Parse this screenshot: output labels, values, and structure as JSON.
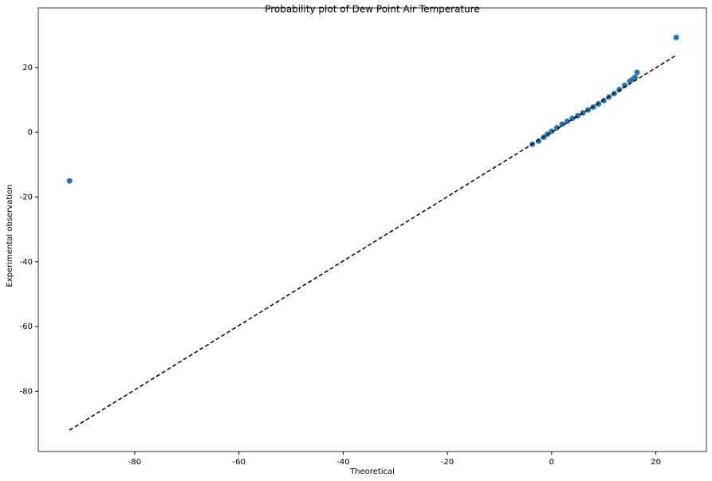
{
  "chart_data": {
    "type": "scatter",
    "title": "Probability plot of Dew Point Air Temperature",
    "x_label": "Theoretical",
    "y_label": "Experimental observation",
    "xlim": [
      -98.5,
      29.7
    ],
    "ylim": [
      -98.6,
      38.4
    ],
    "xticks": [
      -80,
      -60,
      -40,
      -20,
      0,
      20
    ],
    "yticks": [
      -80,
      -60,
      -40,
      -20,
      0,
      20
    ],
    "series": [
      {
        "type": "scatter",
        "color": "#1f77b4",
        "x": [
          -92.5,
          -3.7,
          -2.5,
          -1.5,
          -0.8,
          0,
          1,
          2,
          3,
          4,
          5,
          6,
          7,
          8,
          9,
          10,
          11,
          12,
          13,
          14,
          15,
          15.6,
          16,
          16.4,
          23.9
        ],
        "values": [
          -15,
          -3.7,
          -2.7,
          -1.5,
          -0.6,
          0.3,
          1.4,
          2.5,
          3.4,
          4.3,
          5.1,
          6,
          6.9,
          7.8,
          8.8,
          9.8,
          10.9,
          12,
          13.2,
          14.5,
          15.8,
          16.4,
          17,
          18.5,
          29.3
        ]
      },
      {
        "type": "line",
        "color": "#000000",
        "dash": true,
        "x": [
          -92.5,
          23.9
        ],
        "values": [
          -92.0,
          23.8
        ]
      }
    ]
  }
}
